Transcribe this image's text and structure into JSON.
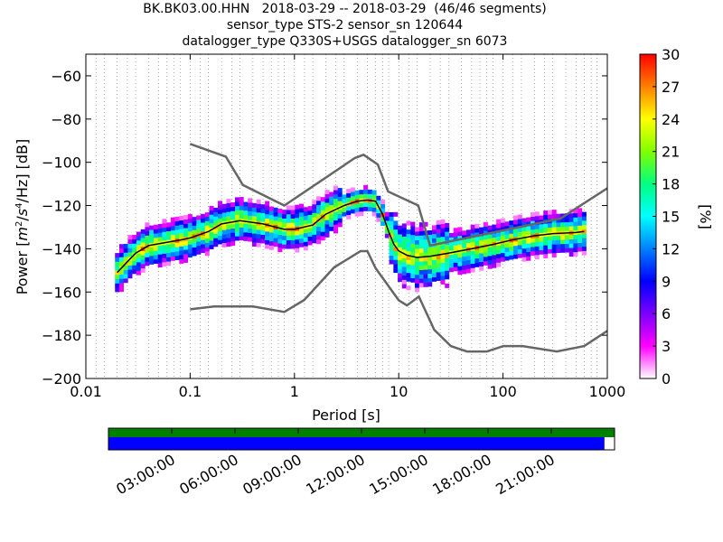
{
  "title": {
    "line1": "BK.BK03.00.HHN   2018-03-29 -- 2018-03-29  (46/46 segments)",
    "line2": "sensor_type STS-2 sensor_sn 120644",
    "line3": "datalogger_type Q330S+USGS datalogger_sn 6073"
  },
  "colors": {
    "model_curve": "#666666",
    "mean_curve": "#000000",
    "coverage_top": "#008000",
    "coverage_bottom": "#0000ff",
    "grid": "#000000"
  },
  "chart_data": {
    "type": "heatmap",
    "xlabel": "Period [s]",
    "ylabel": "Power [m²/s⁴/Hz] [dB]",
    "ylabel_parts": {
      "lead": "Power [",
      "m": "m",
      "m_sup": "2",
      "mid": "/",
      "s": "s",
      "s_sup": "4",
      "tail": "/Hz] [dB]"
    },
    "x_scale": "log",
    "xlim": [
      0.01,
      1000
    ],
    "ylim": [
      -200,
      -50
    ],
    "xticks": [
      0.01,
      0.1,
      1,
      10,
      100,
      1000
    ],
    "xtick_labels": [
      "0.01",
      "0.1",
      "1",
      "10",
      "100",
      "1000"
    ],
    "yticks": [
      -200,
      -180,
      -160,
      -140,
      -120,
      -100,
      -80,
      -60
    ],
    "ytick_labels": [
      "−200",
      "−180",
      "−160",
      "−140",
      "−120",
      "−100",
      "−80",
      "−60"
    ],
    "grid": "dotted vertical lines at log-spaced periods",
    "colorbar": {
      "label": "[%]",
      "min": 0,
      "max": 30,
      "ticks": [
        0,
        3,
        6,
        9,
        12,
        15,
        18,
        21,
        24,
        27,
        30
      ],
      "tick_labels": [
        "0",
        "3",
        "6",
        "9",
        "12",
        "15",
        "18",
        "21",
        "24",
        "27",
        "30"
      ]
    },
    "noise_models": [
      {
        "name": "high",
        "x": [
          0.1,
          0.22,
          0.32,
          0.8,
          3.8,
          4.6,
          6.3,
          7.9,
          15.4,
          20,
          354.8,
          1000
        ],
        "y": [
          -91.5,
          -97.4,
          -110.5,
          -120,
          -98,
          -96.5,
          -101,
          -113.5,
          -120,
          -138.5,
          -126,
          -112
        ]
      },
      {
        "name": "low",
        "x": [
          0.1,
          0.17,
          0.4,
          0.8,
          1.24,
          2.4,
          4.3,
          5,
          6,
          10,
          12,
          15.6,
          21.9,
          31.6,
          45,
          70,
          101,
          154,
          328,
          600,
          1000
        ],
        "y": [
          -168,
          -166.7,
          -166.7,
          -169.2,
          -163.7,
          -148.6,
          -141.1,
          -141.1,
          -149,
          -163.8,
          -166.2,
          -162.1,
          -177.5,
          -185,
          -187.5,
          -187.5,
          -185,
          -185,
          -187.5,
          -185,
          -178
        ]
      }
    ],
    "mean_psd": {
      "x": [
        0.02,
        0.025,
        0.03,
        0.04,
        0.06,
        0.08,
        0.1,
        0.15,
        0.2,
        0.3,
        0.5,
        0.8,
        1,
        1.5,
        2,
        3,
        4,
        5,
        6,
        7,
        8,
        9,
        10,
        12,
        15,
        20,
        30,
        50,
        80,
        120,
        200,
        300,
        500,
        600
      ],
      "y": [
        -151,
        -146,
        -142,
        -138.5,
        -137,
        -136,
        -135,
        -132,
        -128.5,
        -127,
        -128.5,
        -131,
        -131,
        -129,
        -124,
        -120,
        -118,
        -117.5,
        -118,
        -124,
        -132,
        -138,
        -141,
        -143,
        -144,
        -143.5,
        -142,
        -140,
        -138,
        -136,
        -134,
        -133,
        -132.5,
        -132
      ]
    },
    "coverage": {
      "x_ticks": [
        "03:00:00",
        "06:00:00",
        "09:00:00",
        "12:00:00",
        "15:00:00",
        "18:00:00",
        "21:00:00"
      ],
      "available_fraction": 0.98,
      "used_fraction": 1.0
    }
  }
}
